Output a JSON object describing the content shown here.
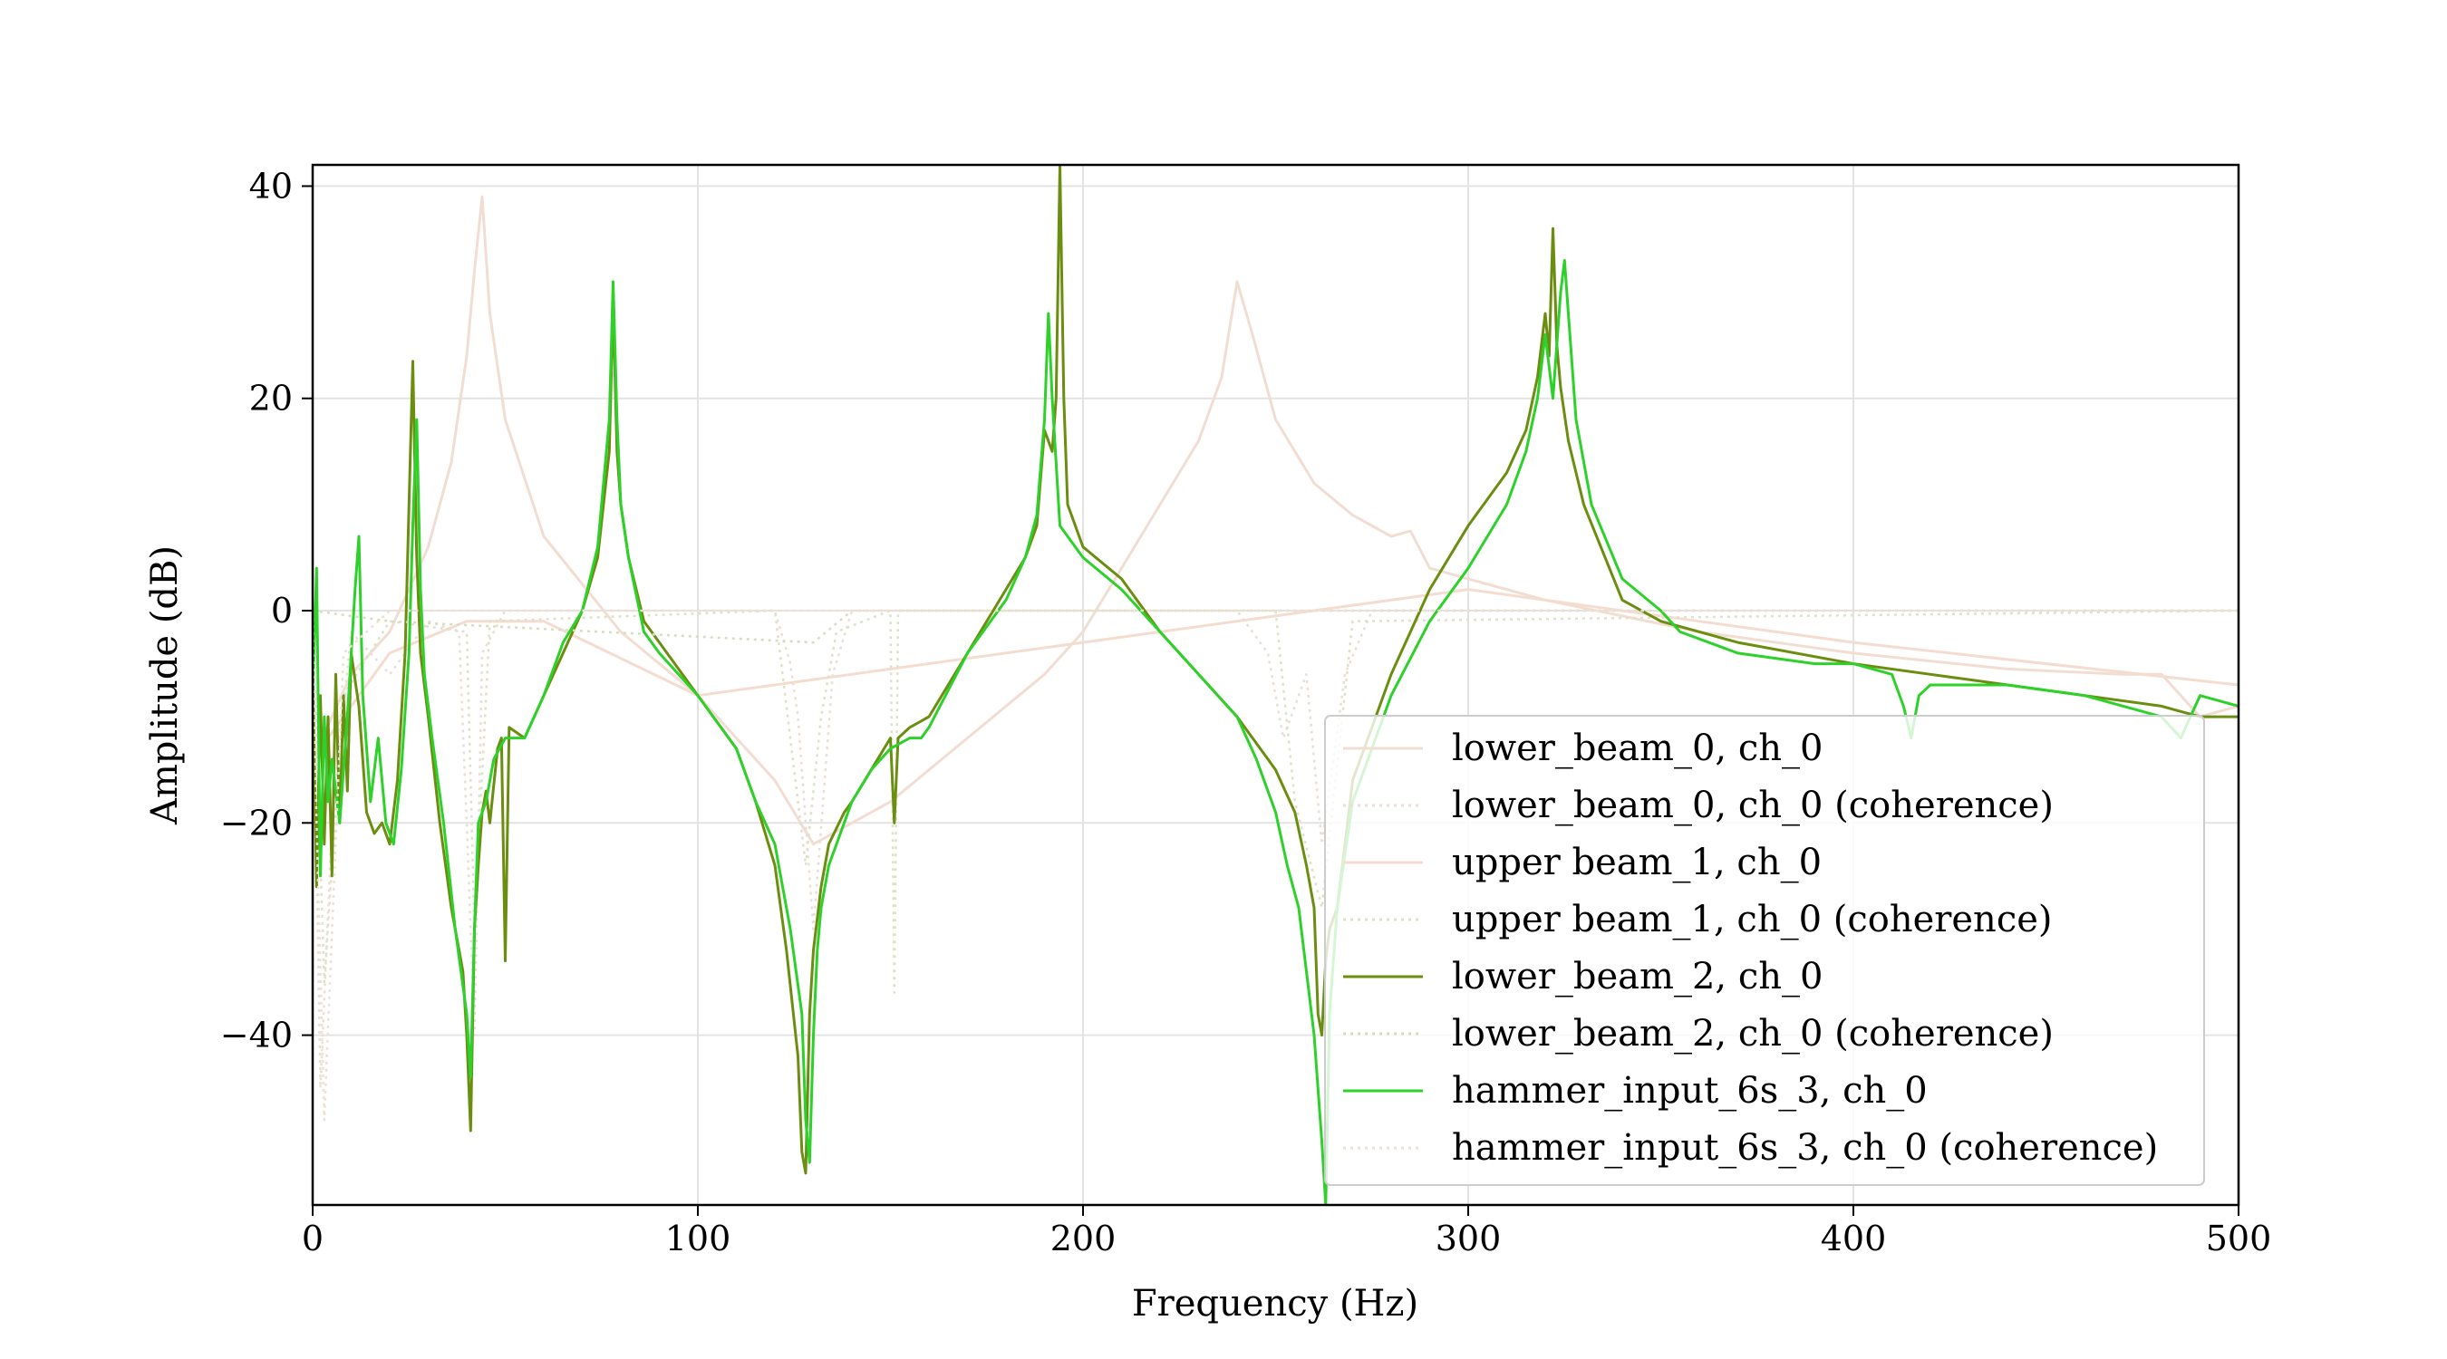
{
  "chart_data": {
    "type": "line",
    "title": "",
    "xlabel": "Frequency (Hz)",
    "ylabel": "Amplitude (dB)",
    "xlim": [
      0,
      500
    ],
    "ylim": [
      -56,
      42
    ],
    "xticks": [
      0,
      100,
      200,
      300,
      400,
      500
    ],
    "yticks": [
      -40,
      -20,
      0,
      20,
      40
    ],
    "xtick_labels": [
      "0",
      "100",
      "200",
      "300",
      "400",
      "500"
    ],
    "ytick_labels": [
      "−40",
      "−20",
      "0",
      "20",
      "40"
    ],
    "grid": true,
    "legend_position": "lower-right",
    "series": [
      {
        "name": "lower_beam_0, ch_0",
        "color": "#f2ddd2",
        "style": "solid",
        "x": [
          0,
          10,
          20,
          30,
          36,
          40,
          42,
          44,
          46,
          50,
          60,
          80,
          100,
          110,
          120,
          130,
          150,
          170,
          190,
          200,
          210,
          220,
          230,
          236,
          240,
          244,
          250,
          260,
          270,
          280,
          285,
          290,
          300,
          320,
          340,
          360,
          400,
          440,
          470,
          480,
          490,
          500
        ],
        "y": [
          -14,
          -6,
          -2,
          6,
          14,
          24,
          32,
          39,
          28,
          18,
          7,
          -2,
          -8,
          -12,
          -16,
          -22,
          -18,
          -12,
          -6,
          -2,
          4,
          10,
          16,
          22,
          31,
          26,
          18,
          12,
          9,
          7,
          7.5,
          4,
          3,
          1,
          -0.5,
          -2,
          -4,
          -5.5,
          -6,
          -6,
          -10,
          -9
        ]
      },
      {
        "name": "lower_beam_0, ch_0 (coherence)",
        "color": "#eadfd6",
        "style": "dotted",
        "x": [
          0,
          2,
          5,
          10,
          20,
          30,
          38,
          40,
          42,
          44,
          50,
          120,
          124,
          126,
          130,
          135,
          140,
          240,
          248,
          252,
          258,
          262,
          268,
          275,
          400,
          500
        ],
        "y": [
          0,
          -45,
          -20,
          -2,
          -6,
          -1,
          -2,
          -20,
          -40,
          -4,
          0,
          0,
          -5,
          -10,
          -30,
          -6,
          0,
          0,
          -4,
          -12,
          -6,
          -22,
          -6,
          0,
          0,
          0
        ]
      },
      {
        "name": "upper beam_1, ch_0",
        "color": "#f5dcd0",
        "style": "solid",
        "x": [
          0,
          20,
          40,
          60,
          100,
          200,
          300,
          400,
          500
        ],
        "y": [
          -14,
          -4,
          -1,
          -1,
          -8,
          -3,
          2,
          -3,
          -7
        ]
      },
      {
        "name": "upper beam_1, ch_0 (coherence)",
        "color": "#dde2c8",
        "style": "dotted",
        "x": [
          0,
          3,
          8,
          20,
          40,
          42,
          46,
          120,
          128,
          132,
          136,
          150,
          151,
          152,
          250,
          255,
          262,
          270,
          500
        ],
        "y": [
          0,
          -35,
          -8,
          -1,
          -2,
          -30,
          -1,
          0,
          -24,
          -10,
          -2,
          0,
          -36,
          0,
          0,
          -18,
          -28,
          -1,
          0
        ]
      },
      {
        "name": "lower_beam_2, ch_0",
        "color": "#6b8e10",
        "style": "solid",
        "x": [
          0,
          1,
          2,
          3,
          4,
          5,
          6,
          7,
          8,
          9,
          10,
          12,
          14,
          16,
          18,
          20,
          22,
          24,
          25,
          26,
          27,
          28,
          30,
          33,
          36,
          39,
          40,
          41,
          42,
          43,
          44,
          45,
          46,
          48,
          49,
          50,
          51,
          55,
          60,
          65,
          70,
          74,
          77,
          78,
          79,
          80,
          82,
          86,
          90,
          100,
          110,
          115,
          120,
          123,
          126,
          127,
          128,
          129,
          130,
          131,
          132,
          134,
          138,
          140,
          145,
          150,
          151,
          152,
          155,
          160,
          170,
          180,
          185,
          188,
          190,
          192,
          193,
          194,
          195,
          196,
          198,
          200,
          210,
          220,
          230,
          240,
          250,
          255,
          258,
          260,
          261,
          262,
          263,
          264,
          266,
          270,
          280,
          290,
          300,
          310,
          315,
          318,
          320,
          321,
          322,
          323,
          324,
          326,
          330,
          340,
          350,
          370,
          400,
          420,
          440,
          460,
          480,
          490,
          500
        ],
        "y": [
          -5,
          -26,
          -8,
          -22,
          -10,
          -25,
          -6,
          -20,
          -8,
          -17,
          -4,
          -9,
          -19,
          -21,
          -20,
          -22,
          -16,
          -4,
          10,
          23.5,
          5,
          -4,
          -10,
          -20,
          -28,
          -34,
          -40,
          -49,
          -30,
          -24,
          -19,
          -17,
          -20,
          -13,
          -12,
          -33,
          -11,
          -12,
          -8,
          -4,
          0,
          5,
          15,
          29,
          15,
          10,
          5,
          -1,
          -3,
          -8,
          -13,
          -18,
          -24,
          -32,
          -42,
          -51,
          -53,
          -38,
          -32,
          -29,
          -26,
          -22,
          -19,
          -18,
          -15,
          -12,
          -20,
          -12,
          -11,
          -10,
          -4,
          2,
          5,
          8,
          17,
          15,
          20,
          42,
          20,
          10,
          8,
          6,
          3,
          -2,
          -6,
          -10,
          -15,
          -19,
          -24,
          -28,
          -38,
          -40,
          -33,
          -30,
          -28,
          -16,
          -6,
          2,
          8,
          13,
          17,
          22,
          28,
          24,
          36,
          25,
          21,
          16,
          10,
          1,
          -1,
          -3,
          -5,
          -6,
          -7,
          -8,
          -9,
          -10,
          -10
        ]
      },
      {
        "name": "lower_beam_2, ch_0 (coherence)",
        "color": "#d9ddc0",
        "style": "dotted",
        "x": [
          0,
          20,
          130,
          140,
          240,
          500
        ],
        "y": [
          0,
          -1,
          -3,
          0,
          0,
          0
        ]
      },
      {
        "name": "hammer_input_6s_3, ch_0",
        "color": "#2ed12a",
        "style": "solid",
        "x": [
          0,
          1,
          2,
          3,
          4,
          5,
          7,
          9,
          11,
          12,
          13,
          15,
          17,
          19,
          21,
          23,
          25,
          26,
          27,
          28,
          29,
          31,
          34,
          37,
          40,
          41,
          42,
          43,
          45,
          47,
          50,
          55,
          60,
          65,
          70,
          74,
          77,
          78,
          79,
          80,
          82,
          86,
          90,
          100,
          110,
          115,
          120,
          124,
          127,
          128,
          129,
          130,
          131,
          132,
          134,
          138,
          140,
          145,
          150,
          155,
          158,
          160,
          170,
          180,
          185,
          188,
          190,
          191,
          192,
          194,
          196,
          198,
          200,
          210,
          220,
          230,
          240,
          245,
          250,
          253,
          256,
          260,
          262,
          263,
          264,
          266,
          270,
          280,
          290,
          300,
          310,
          315,
          318,
          320,
          322,
          324,
          325,
          326,
          328,
          332,
          340,
          350,
          355,
          370,
          390,
          400,
          410,
          413,
          415,
          417,
          420,
          440,
          460,
          480,
          485,
          490,
          500
        ],
        "y": [
          -8,
          4,
          -25,
          -10,
          -18,
          -14,
          -20,
          -10,
          2,
          7,
          -8,
          -18,
          -12,
          -20,
          -22,
          -15,
          -4,
          8,
          18,
          2,
          -6,
          -12,
          -20,
          -30,
          -38,
          -44,
          -30,
          -20,
          -18,
          -14,
          -12,
          -12,
          -8,
          -3,
          0,
          6,
          18,
          31,
          18,
          10,
          5,
          -2,
          -4,
          -8,
          -13,
          -18,
          -22,
          -30,
          -38,
          -48,
          -52,
          -40,
          -32,
          -28,
          -24,
          -20,
          -18,
          -15,
          -13,
          -12,
          -12,
          -11,
          -4,
          1,
          5,
          9,
          18,
          28,
          20,
          8,
          7,
          6,
          5,
          2,
          -2,
          -6,
          -10,
          -14,
          -19,
          -24,
          -28,
          -40,
          -50,
          -56,
          -38,
          -28,
          -18,
          -8,
          -1,
          4,
          10,
          15,
          20,
          26,
          20,
          30,
          33,
          28,
          18,
          10,
          3,
          0,
          -2,
          -4,
          -5,
          -5,
          -6,
          -9,
          -12,
          -8,
          -7,
          -7,
          -8,
          -10,
          -12,
          -8,
          -9
        ]
      },
      {
        "name": "hammer_input_6s_3, ch_0 (coherence)",
        "color": "#f0e0d4",
        "style": "dotted",
        "x": [
          0,
          1,
          3,
          8,
          20,
          500
        ],
        "y": [
          0,
          -20,
          -48,
          -4,
          0,
          0
        ]
      }
    ]
  }
}
